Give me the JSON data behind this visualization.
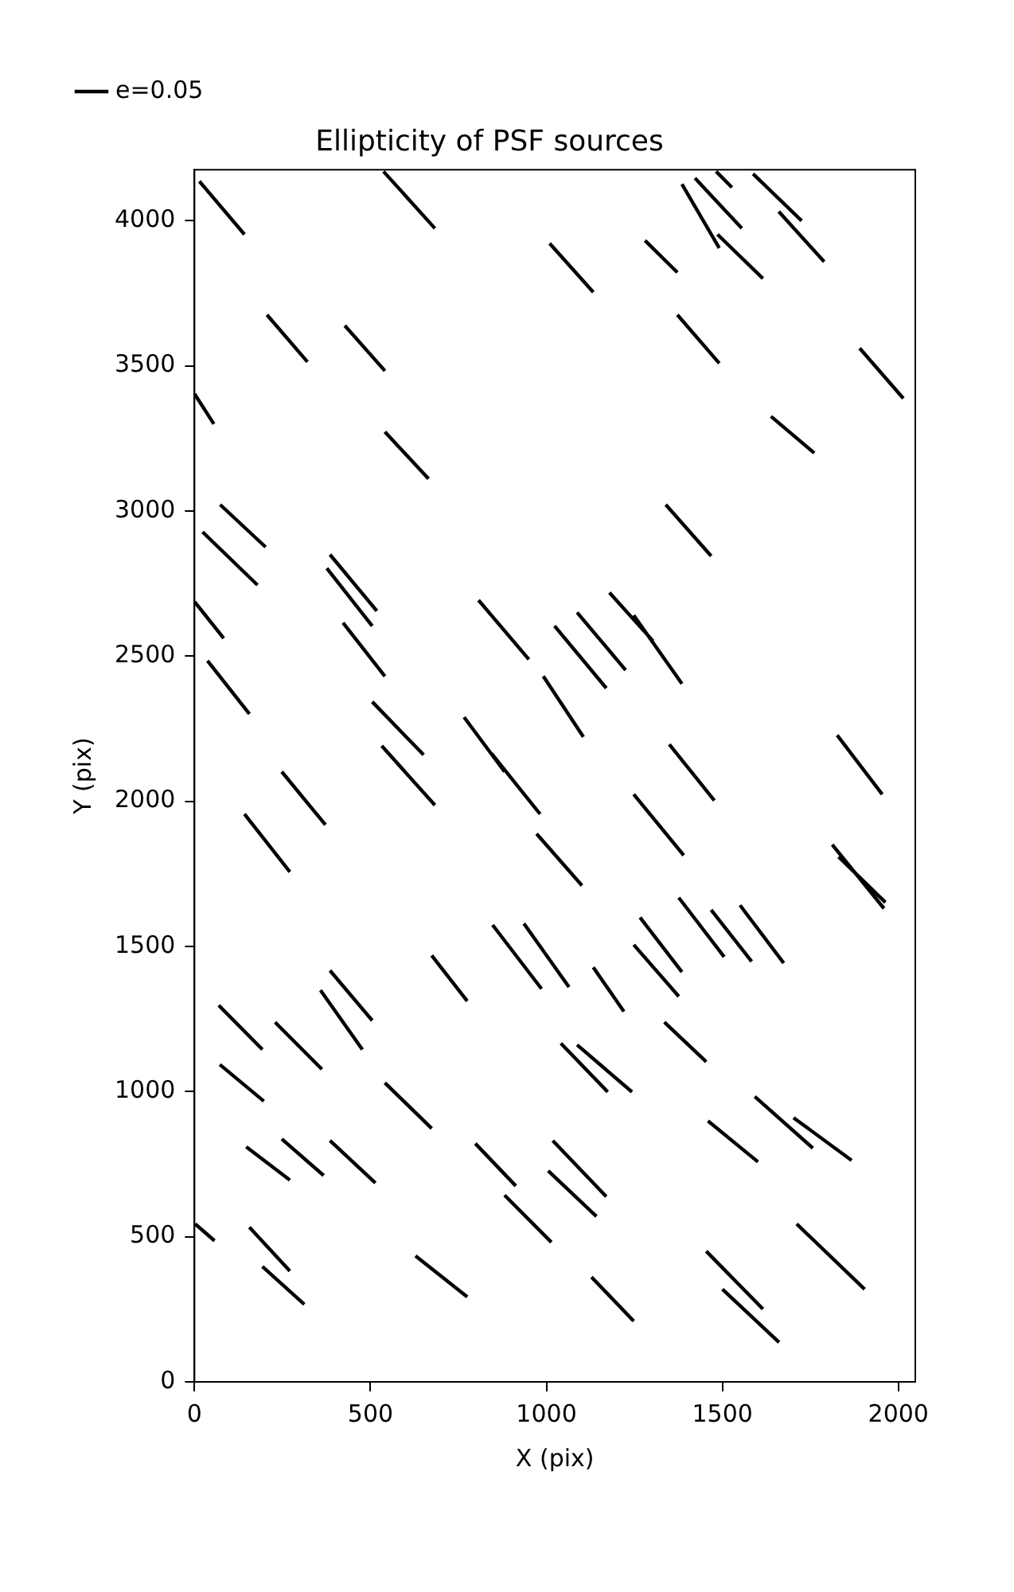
{
  "chart_data": {
    "type": "line",
    "title": "Ellipticity of PSF sources",
    "xlabel": "X (pix)",
    "ylabel": "Y (pix)",
    "xlim": [
      0,
      2048
    ],
    "ylim": [
      0,
      4176
    ],
    "xticks": [
      0,
      500,
      1000,
      1500,
      2000
    ],
    "yticks": [
      0,
      500,
      1000,
      1500,
      2000,
      2500,
      3000,
      3500,
      4000
    ],
    "grid": false,
    "legend": "top left",
    "marker": "none",
    "line_style": "solid",
    "series": [
      {
        "name": "e=0.05",
        "color": "#000000",
        "x": [
          14,
          142,
          null,
          537,
          683,
          null,
          1009,
          1133,
          null,
          1280,
          1372,
          null,
          1385,
          1491,
          null,
          1422,
          1555,
          null,
          1482,
          1527,
          null,
          1587,
          1725,
          null,
          1660,
          1789,
          null,
          1486,
          1615,
          null,
          206,
          321,
          null,
          427,
          541,
          null,
          1372,
          1491,
          null,
          1890,
          2014,
          null,
          0,
          55,
          null,
          541,
          665,
          null,
          1638,
          1761,
          null,
          73,
          202,
          null,
          23,
          179,
          null,
          1339,
          1468,
          null,
          385,
          518,
          null,
          376,
          505,
          null,
          0,
          83,
          null,
          807,
          950,
          null,
          1023,
          1170,
          null,
          1087,
          1225,
          null,
          1179,
          1303,
          null,
          1248,
          1385,
          null,
          422,
          541,
          null,
          37,
          156,
          null,
          991,
          1105,
          null,
          505,
          651,
          null,
          766,
          881,
          null,
          844,
          982,
          null,
          1349,
          1477,
          null,
          532,
          683,
          null,
          1826,
          1954,
          null,
          248,
          372,
          null,
          142,
          271,
          null,
          1248,
          1390,
          null,
          972,
          1101,
          null,
          1812,
          1959,
          null,
          1830,
          1963,
          null,
          1376,
          1505,
          null,
          1468,
          1583,
          null,
          1550,
          1674,
          null,
          1266,
          1385,
          null,
          1248,
          1376,
          null,
          847,
          986,
          null,
          936,
          1064,
          null,
          674,
          775,
          null,
          1133,
          1220,
          null,
          358,
          477,
          null,
          385,
          505,
          null,
          69,
          193,
          null,
          229,
          362,
          null,
          1041,
          1174,
          null,
          1087,
          1243,
          null,
          1335,
          1454,
          null,
          72,
          197,
          null,
          541,
          674,
          null,
          147,
          271,
          null,
          248,
          367,
          null,
          385,
          514,
          null,
          798,
          913,
          null,
          1018,
          1170,
          null,
          1005,
          1142,
          null,
          881,
          1014,
          null,
          1459,
          1601,
          null,
          1592,
          1757,
          null,
          1702,
          1867,
          null,
          156,
          271,
          null,
          2,
          57,
          null,
          193,
          312,
          null,
          628,
          775,
          null,
          1128,
          1248,
          null,
          1454,
          1615,
          null,
          1500,
          1661,
          null,
          1711,
          1904
        ],
        "values": [
          4136,
          3953,
          null,
          4170,
          3974,
          null,
          3922,
          3754,
          null,
          3932,
          3822,
          null,
          4126,
          3906,
          null,
          4147,
          3974,
          null,
          4170,
          4115,
          null,
          4162,
          4000,
          null,
          4032,
          3859,
          null,
          3953,
          3801,
          null,
          3676,
          3514,
          null,
          3639,
          3483,
          null,
          3676,
          3509,
          null,
          3561,
          3388,
          null,
          3404,
          3300,
          null,
          3273,
          3111,
          null,
          3326,
          3200,
          null,
          3022,
          2876,
          null,
          2928,
          2745,
          null,
          3022,
          2845,
          null,
          2850,
          2656,
          null,
          2803,
          2604,
          null,
          2688,
          2562,
          null,
          2693,
          2489,
          null,
          2604,
          2390,
          null,
          2651,
          2452,
          null,
          2719,
          2552,
          null,
          2641,
          2405,
          null,
          2615,
          2431,
          null,
          2484,
          2301,
          null,
          2431,
          2222,
          null,
          2343,
          2160,
          null,
          2290,
          2102,
          null,
          2165,
          1956,
          null,
          2196,
          2003,
          null,
          2191,
          1987,
          null,
          2228,
          2024,
          null,
          2102,
          1919,
          null,
          1956,
          1757,
          null,
          2024,
          1814,
          null,
          1888,
          1710,
          null,
          1851,
          1631,
          null,
          1809,
          1652,
          null,
          1668,
          1464,
          null,
          1626,
          1448,
          null,
          1642,
          1443,
          null,
          1600,
          1412,
          null,
          1506,
          1328,
          null,
          1574,
          1354,
          null,
          1579,
          1360,
          null,
          1469,
          1312,
          null,
          1428,
          1276,
          null,
          1349,
          1145,
          null,
          1417,
          1245,
          null,
          1297,
          1145,
          null,
          1239,
          1077,
          null,
          1166,
          999,
          null,
          1161,
          999,
          null,
          1239,
          1103,
          null,
          1093,
          967,
          null,
          1030,
          873,
          null,
          810,
          695,
          null,
          837,
          711,
          null,
          831,
          685,
          null,
          821,
          675,
          null,
          831,
          638,
          null,
          727,
          570,
          null,
          643,
          481,
          null,
          899,
          758,
          null,
          983,
          805,
          null,
          910,
          763,
          null,
          533,
          382,
          null,
          544,
          486,
          null,
          397,
          267,
          null,
          434,
          293,
          null,
          361,
          209,
          null,
          450,
          251,
          null,
          319,
          136,
          null,
          544,
          319
        ]
      }
    ]
  }
}
